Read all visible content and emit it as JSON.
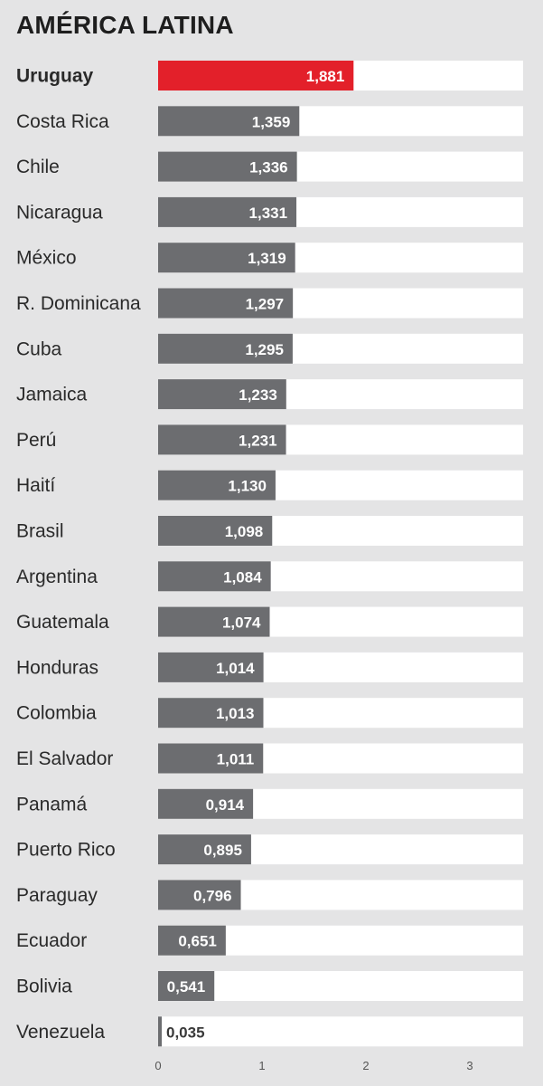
{
  "chart_data": {
    "type": "bar",
    "orientation": "horizontal",
    "title": "AMÉRICA LATINA",
    "categories": [
      "Uruguay",
      "Costa Rica",
      "Chile",
      "Nicaragua",
      "México",
      "R. Dominicana",
      "Cuba",
      "Jamaica",
      "Perú",
      "Haití",
      "Brasil",
      "Argentina",
      "Guatemala",
      "Honduras",
      "Colombia",
      "El Salvador",
      "Panamá",
      "Puerto Rico",
      "Paraguay",
      "Ecuador",
      "Bolivia",
      "Venezuela"
    ],
    "values": [
      1.881,
      1.359,
      1.336,
      1.331,
      1.319,
      1.297,
      1.295,
      1.233,
      1.231,
      1.13,
      1.098,
      1.084,
      1.074,
      1.014,
      1.013,
      1.011,
      0.914,
      0.895,
      0.796,
      0.651,
      0.541,
      0.035
    ],
    "value_labels": [
      "1,881",
      "1,359",
      "1,336",
      "1,331",
      "1,319",
      "1,297",
      "1,295",
      "1,233",
      "1,231",
      "1,130",
      "1,098",
      "1,084",
      "1,074",
      "1,014",
      "1,013",
      "1,011",
      "0,914",
      "0,895",
      "0,796",
      "0,651",
      "0,541",
      "0,035"
    ],
    "highlight": "Uruguay",
    "xlim": [
      0,
      3.5
    ],
    "x_ticks": [
      0,
      1,
      2,
      3
    ],
    "x_tick_labels": [
      "0",
      "1",
      "2",
      "3"
    ],
    "grid": false,
    "colors": {
      "background": "#e4e4e5",
      "track": "#ffffff",
      "bar": "#6c6d70",
      "highlight_bar": "#e3202a",
      "label_text": "#2a2a2a",
      "value_text": "#ffffff",
      "axis_text": "#555555"
    }
  }
}
